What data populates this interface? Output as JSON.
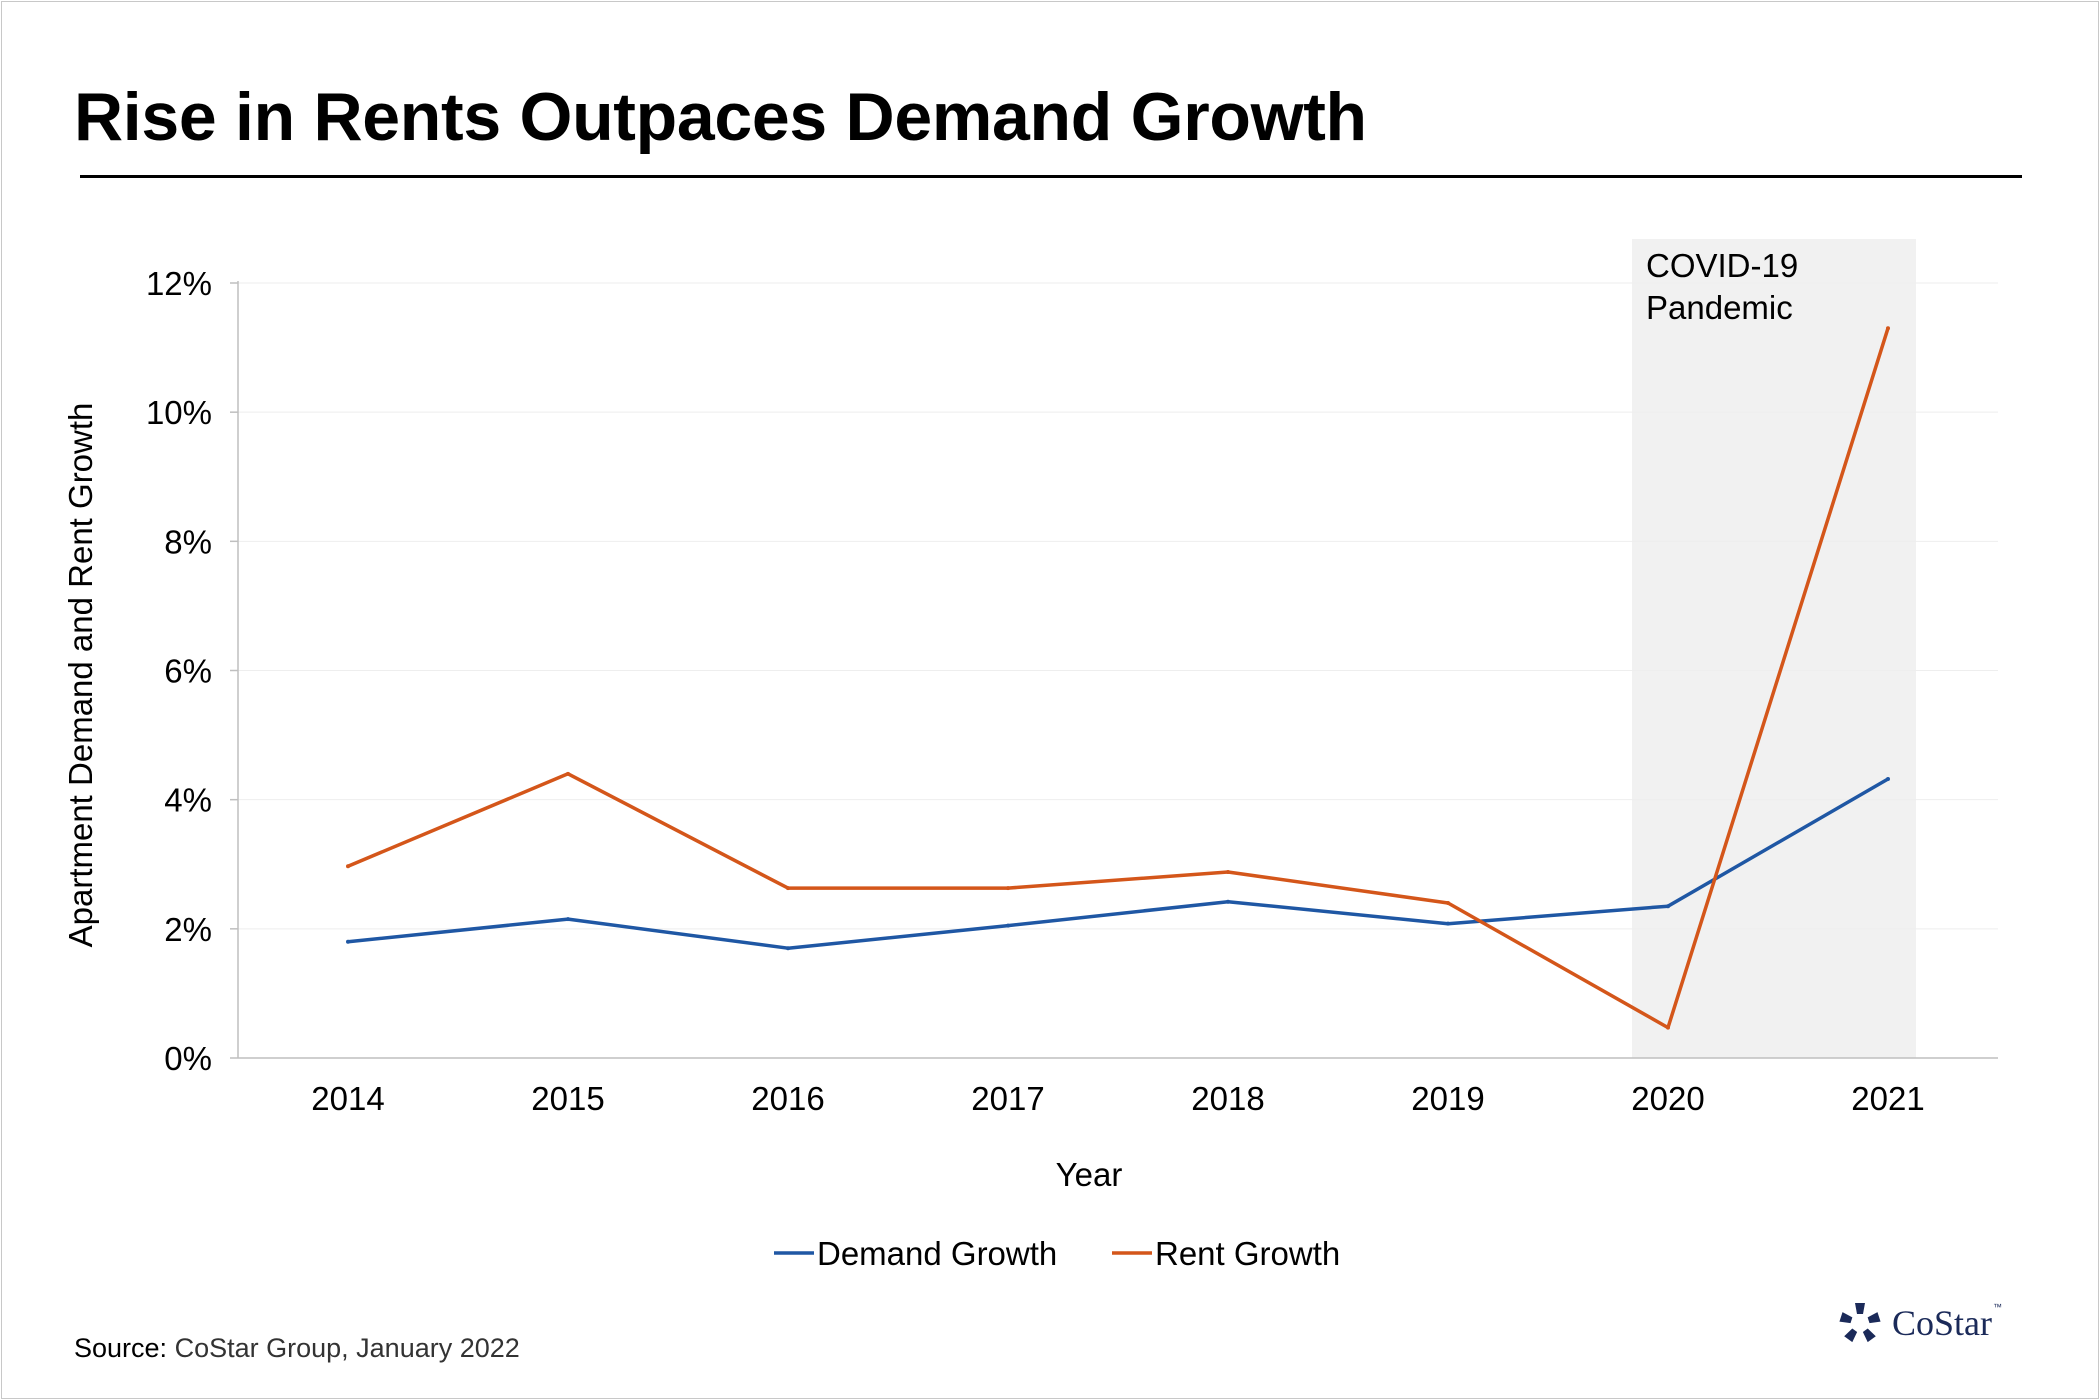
{
  "title": "Rise in Rents Outpaces Demand Growth",
  "source_label": "Source:",
  "source_text": "CoStar Group, January 2022",
  "logo": {
    "name": "CoStar",
    "trademark": "™"
  },
  "colors": {
    "demand": "#1f57a4",
    "rent": "#d4561a",
    "shading": "#f1f1f1",
    "logo": "#1b2a59"
  },
  "chart_data": {
    "type": "line",
    "x": [
      "2014",
      "2015",
      "2016",
      "2017",
      "2018",
      "2019",
      "2020",
      "2021"
    ],
    "series": [
      {
        "name": "Demand Growth",
        "values": [
          1.8,
          2.15,
          1.7,
          2.05,
          2.42,
          2.08,
          2.35,
          4.32
        ]
      },
      {
        "name": "Rent Growth",
        "values": [
          2.97,
          4.4,
          2.63,
          2.63,
          2.88,
          2.4,
          0.47,
          11.3
        ]
      }
    ],
    "xlabel": "Year",
    "ylabel": "Apartment Demand and Rent Growth",
    "ylim": [
      0,
      12
    ],
    "yticks": [
      "0%",
      "2%",
      "4%",
      "6%",
      "8%",
      "10%",
      "12%"
    ],
    "grid": true,
    "legend": "bottom-center",
    "annotation": {
      "lines": [
        "COVID-19",
        "Pandemic"
      ],
      "span": [
        "2020",
        "2021"
      ]
    }
  }
}
